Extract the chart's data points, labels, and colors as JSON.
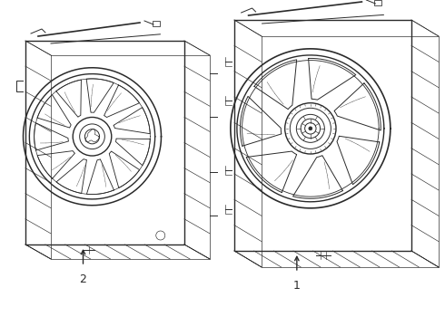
{
  "background_color": "#ffffff",
  "line_color": "#2a2a2a",
  "lw_main": 1.0,
  "lw_med": 0.7,
  "lw_thin": 0.45,
  "fig_width": 4.9,
  "fig_height": 3.6,
  "dpi": 100,
  "label1": "1",
  "label2": "2"
}
